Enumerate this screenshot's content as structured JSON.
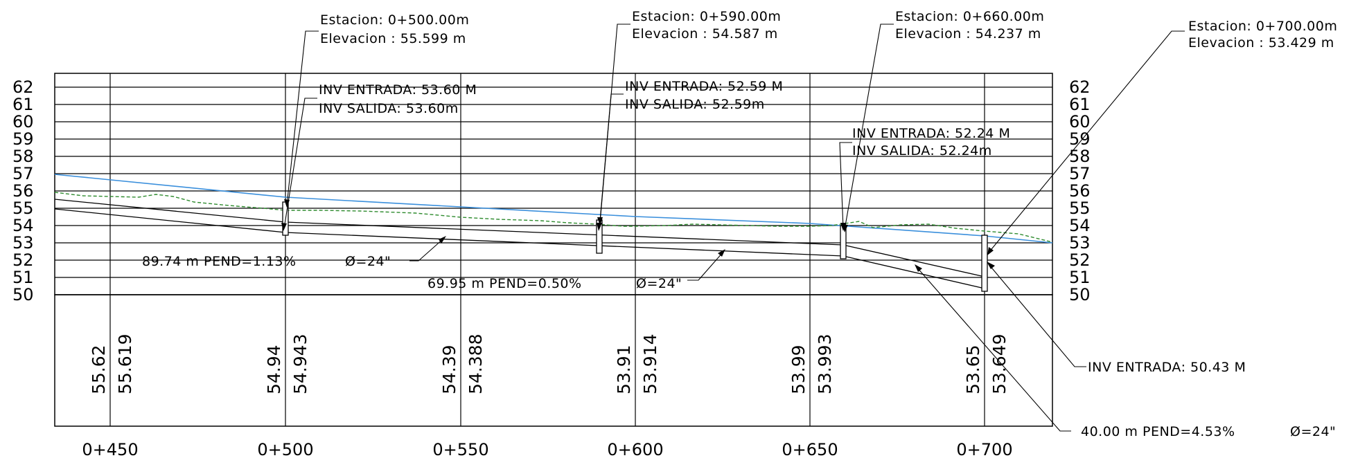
{
  "y_axis": {
    "ticks": [
      "62",
      "61",
      "60",
      "59",
      "58",
      "57",
      "56",
      "55",
      "54",
      "53",
      "52",
      "51",
      "50"
    ]
  },
  "x_axis": {
    "labels": [
      "0+450",
      "0+500",
      "0+550",
      "0+600",
      "0+650",
      "0+700"
    ]
  },
  "manholes": [
    {
      "station": "Estacion:  0+500.00m",
      "elevation": "Elevacion : 55.599  m",
      "inv_in": "INV ENTRADA: 53.60  M",
      "inv_out": "INV SALIDA: 53.60m"
    },
    {
      "station": "Estacion:  0+590.00m",
      "elevation": "Elevacion : 54.587  m",
      "inv_in": "INV ENTRADA: 52.59  M",
      "inv_out": "INV SALIDA: 52.59m"
    },
    {
      "station": "Estacion:  0+660.00m",
      "elevation": "Elevacion : 54.237  m",
      "inv_in": "INV ENTRADA: 52.24  M",
      "inv_out": "INV SALIDA: 52.24m"
    },
    {
      "station": "Estacion:  0+700.00m",
      "elevation": "Elevacion : 53.429  m",
      "inv_in": "INV ENTRADA: 50.43  M",
      "inv_out": ""
    }
  ],
  "pipes": [
    {
      "label": "89.74  m  PEND=1.13%",
      "diameter": "Ø=24\""
    },
    {
      "label": "69.95  m  PEND=0.50%",
      "diameter": "Ø=24\""
    },
    {
      "label": "40.00  m  PEND=4.53%",
      "diameter": "Ø=24\""
    }
  ],
  "station_values": [
    {
      "a": "55.62",
      "b": "55.619"
    },
    {
      "a": "54.94",
      "b": "54.943"
    },
    {
      "a": "54.39",
      "b": "54.388"
    },
    {
      "a": "53.91",
      "b": "53.914"
    },
    {
      "a": "53.99",
      "b": "53.993"
    },
    {
      "a": "53.65",
      "b": "53.649"
    }
  ],
  "colors": {
    "design_grade": "#3a8fdc",
    "existing_ground": "#2e8b2e",
    "lines": "#000000"
  }
}
